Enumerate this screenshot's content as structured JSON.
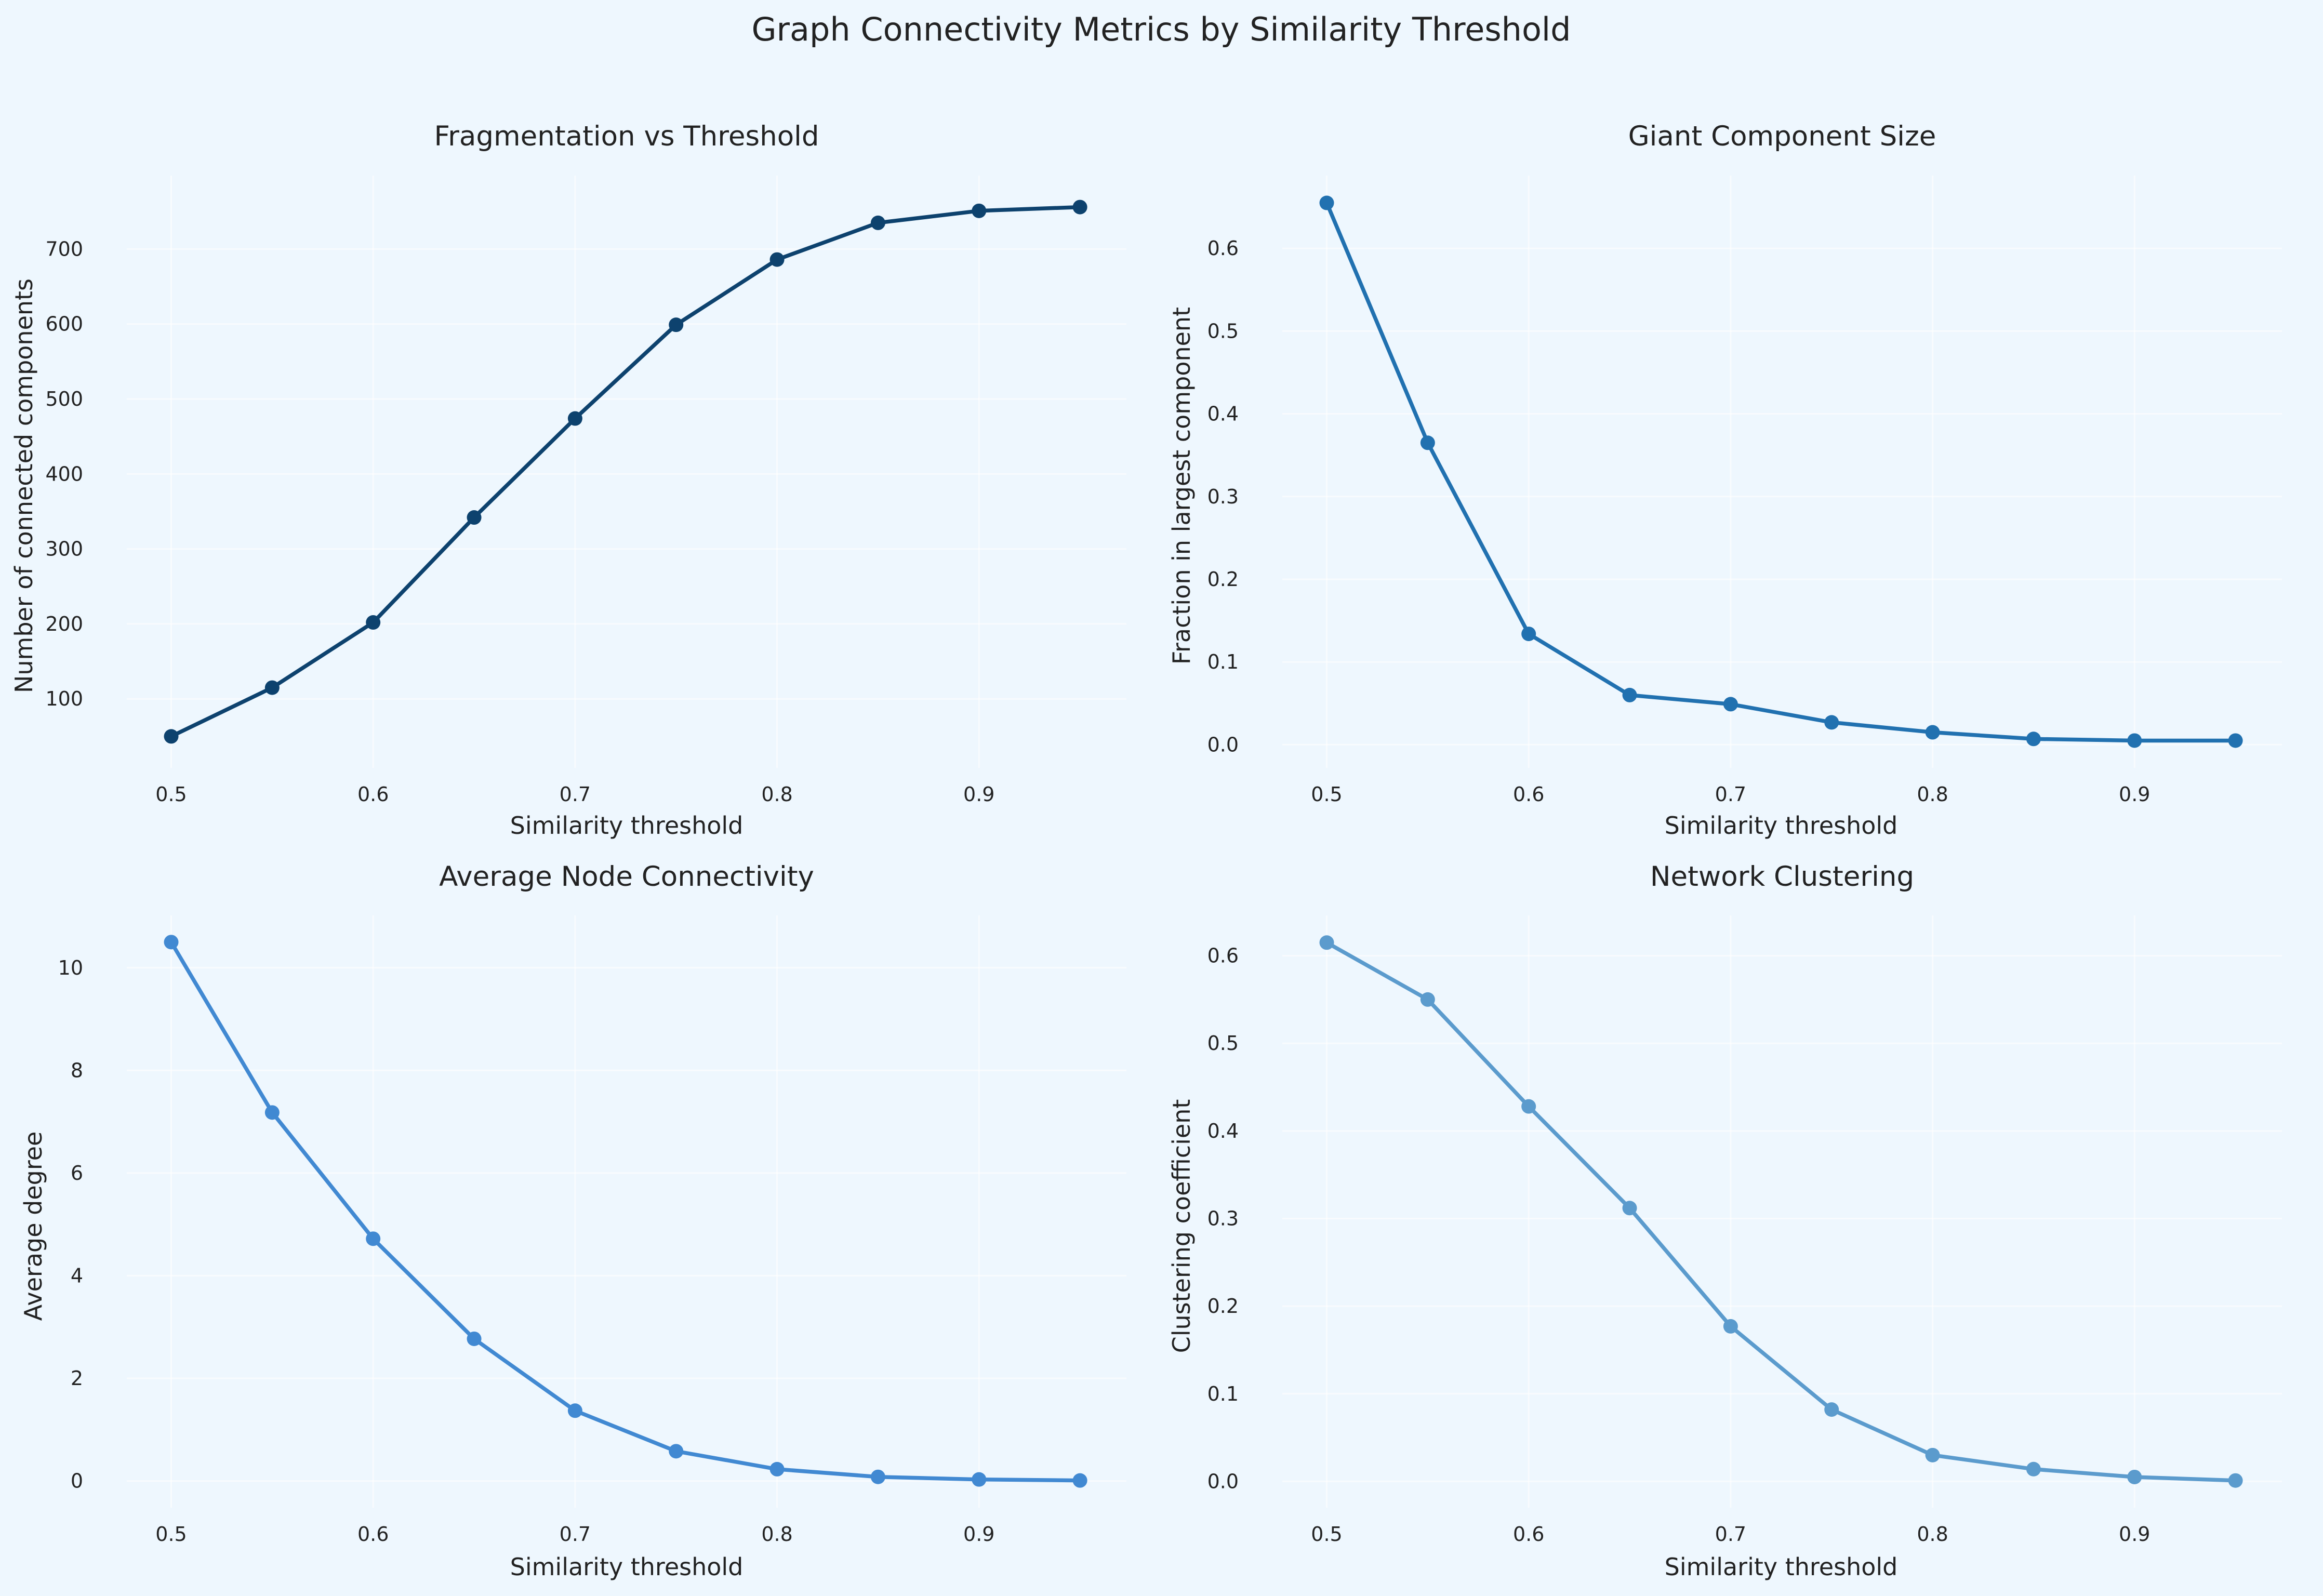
{
  "figure": {
    "title": "Graph Connectivity Metrics by Similarity Threshold",
    "background": "#eef7fe"
  },
  "chart_data": [
    {
      "type": "line",
      "title": "Fragmentation vs Threshold",
      "xlabel": "Similarity threshold",
      "ylabel": "Number of connected components",
      "x": [
        0.5,
        0.55,
        0.6,
        0.65,
        0.7,
        0.75,
        0.8,
        0.85,
        0.9,
        0.95
      ],
      "series": [
        {
          "values": [
            50,
            115,
            202,
            342,
            474,
            599,
            686,
            735,
            751,
            756
          ],
          "color": "#0d426e"
        }
      ],
      "xlim": [
        0.478,
        0.973
      ],
      "ylim": [
        8,
        798
      ],
      "xticks": [
        "0.5",
        "0.6",
        "0.7",
        "0.8",
        "0.9"
      ],
      "yticks": [
        "100",
        "200",
        "300",
        "400",
        "500",
        "600",
        "700"
      ],
      "grid": true
    },
    {
      "type": "line",
      "title": "Giant Component Size",
      "xlabel": "Similarity threshold",
      "ylabel": "Fraction in largest component",
      "x": [
        0.5,
        0.55,
        0.6,
        0.65,
        0.7,
        0.75,
        0.8,
        0.85,
        0.9,
        0.95
      ],
      "series": [
        {
          "values": [
            0.655,
            0.365,
            0.134,
            0.06,
            0.049,
            0.027,
            0.015,
            0.007,
            0.005,
            0.005
          ],
          "color": "#2171b0"
        }
      ],
      "xlim": [
        0.478,
        0.973
      ],
      "ylim": [
        -0.028,
        0.688
      ],
      "xticks": [
        "0.5",
        "0.6",
        "0.7",
        "0.8",
        "0.9"
      ],
      "yticks": [
        "0.0",
        "0.1",
        "0.2",
        "0.3",
        "0.4",
        "0.5",
        "0.6"
      ],
      "grid": true
    },
    {
      "type": "line",
      "title": "Average Node Connectivity",
      "xlabel": "Similarity threshold",
      "ylabel": "Average degree",
      "x": [
        0.5,
        0.55,
        0.6,
        0.65,
        0.7,
        0.75,
        0.8,
        0.85,
        0.9,
        0.95
      ],
      "series": [
        {
          "values": [
            10.5,
            7.18,
            4.72,
            2.77,
            1.37,
            0.58,
            0.23,
            0.08,
            0.03,
            0.01
          ],
          "color": "#4189d2"
        }
      ],
      "xlim": [
        0.478,
        0.973
      ],
      "ylim": [
        -0.52,
        11.02
      ],
      "xticks": [
        "0.5",
        "0.6",
        "0.7",
        "0.8",
        "0.9"
      ],
      "yticks": [
        "0",
        "2",
        "4",
        "6",
        "8",
        "10"
      ],
      "grid": true
    },
    {
      "type": "line",
      "title": "Network Clustering",
      "xlabel": "Similarity threshold",
      "ylabel": "Clustering coefficient",
      "x": [
        0.5,
        0.55,
        0.6,
        0.65,
        0.7,
        0.75,
        0.8,
        0.85,
        0.9,
        0.95
      ],
      "series": [
        {
          "values": [
            0.615,
            0.55,
            0.428,
            0.312,
            0.177,
            0.082,
            0.03,
            0.014,
            0.005,
            0.001
          ],
          "color": "#5b9bcd"
        }
      ],
      "xlim": [
        0.478,
        0.973
      ],
      "ylim": [
        -0.03,
        0.646
      ],
      "xticks": [
        "0.5",
        "0.6",
        "0.7",
        "0.8",
        "0.9"
      ],
      "yticks": [
        "0.0",
        "0.1",
        "0.2",
        "0.3",
        "0.4",
        "0.5",
        "0.6"
      ],
      "grid": true
    }
  ]
}
